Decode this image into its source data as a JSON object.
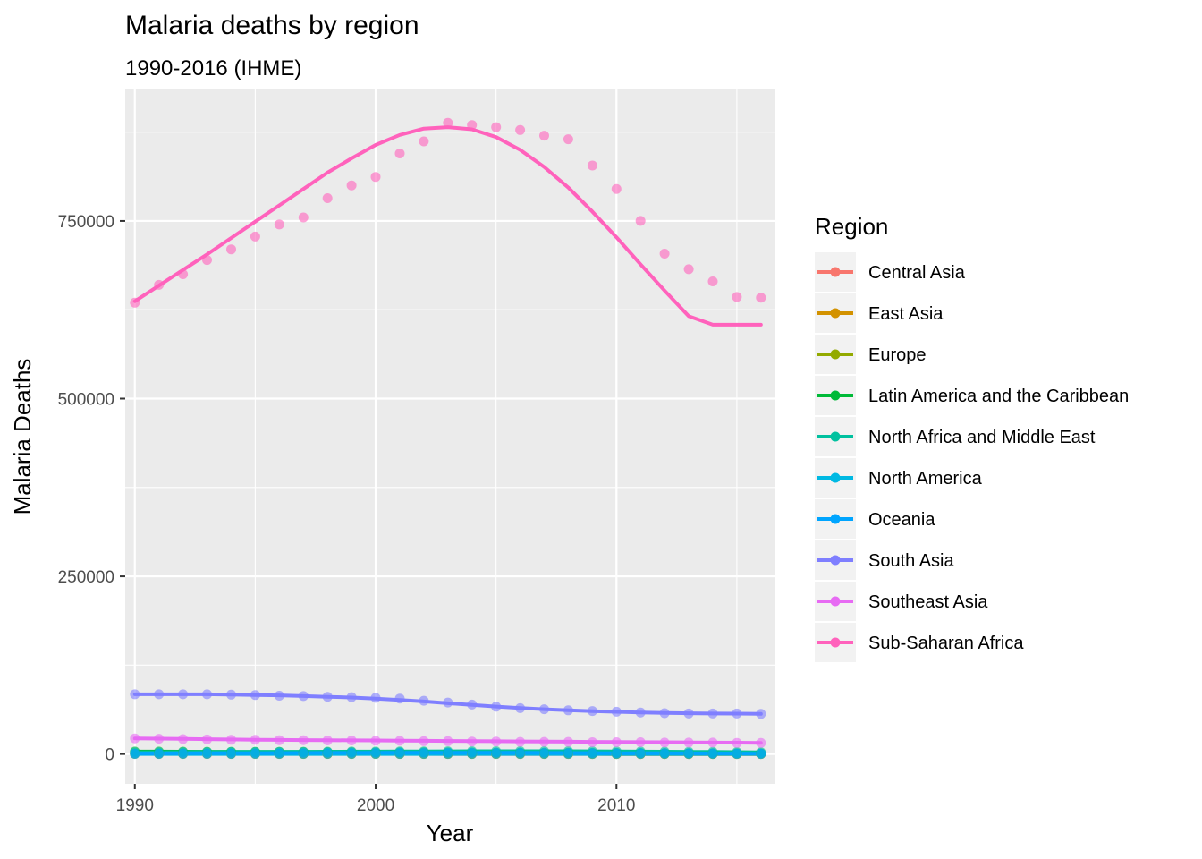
{
  "chart_data": {
    "type": "line",
    "title": "Malaria deaths by region",
    "subtitle": "1990-2016 (IHME)",
    "xlabel": "Year",
    "ylabel": "Malaria Deaths",
    "xlim": [
      1989.6,
      2016.6
    ],
    "ylim": [
      -42000,
      935000
    ],
    "x_ticks": [
      1990,
      2000,
      2010
    ],
    "x_tick_labels": [
      "1990",
      "2000",
      "2010"
    ],
    "y_ticks": [
      0,
      250000,
      500000,
      750000
    ],
    "y_tick_labels": [
      "0",
      "250000",
      "500000",
      "750000"
    ],
    "grid": true,
    "legend": {
      "title": "Region",
      "position": "right"
    },
    "x": [
      1990,
      1991,
      1992,
      1993,
      1994,
      1995,
      1996,
      1997,
      1998,
      1999,
      2000,
      2001,
      2002,
      2003,
      2004,
      2005,
      2006,
      2007,
      2008,
      2009,
      2010,
      2011,
      2012,
      2013,
      2014,
      2015,
      2016
    ],
    "series": [
      {
        "name": "Central Asia",
        "color": "#F8766D",
        "values": [
          200,
          200,
          200,
          200,
          200,
          200,
          200,
          200,
          200,
          150,
          150,
          150,
          150,
          100,
          100,
          100,
          100,
          100,
          100,
          100,
          100,
          100,
          100,
          100,
          100,
          100,
          100
        ],
        "smooth": [
          200,
          200,
          200,
          200,
          200,
          200,
          200,
          200,
          200,
          150,
          150,
          150,
          150,
          100,
          100,
          100,
          100,
          100,
          100,
          100,
          100,
          100,
          100,
          100,
          100,
          100,
          100
        ]
      },
      {
        "name": "East Asia",
        "color": "#D39200",
        "values": [
          500,
          450,
          400,
          400,
          350,
          350,
          300,
          300,
          300,
          250,
          250,
          250,
          200,
          200,
          200,
          150,
          150,
          150,
          150,
          100,
          100,
          100,
          100,
          100,
          80,
          80,
          80
        ],
        "smooth": [
          480,
          450,
          420,
          390,
          360,
          340,
          320,
          300,
          280,
          260,
          240,
          225,
          210,
          195,
          180,
          165,
          150,
          140,
          130,
          120,
          110,
          100,
          95,
          90,
          85,
          80,
          80
        ]
      },
      {
        "name": "Europe",
        "color": "#93AA00",
        "values": [
          300,
          300,
          280,
          280,
          260,
          260,
          250,
          240,
          230,
          220,
          210,
          200,
          190,
          180,
          170,
          160,
          150,
          140,
          130,
          120,
          110,
          100,
          90,
          80,
          70,
          60,
          50
        ],
        "smooth": [
          300,
          295,
          285,
          275,
          265,
          255,
          245,
          235,
          225,
          215,
          205,
          195,
          185,
          175,
          165,
          155,
          145,
          135,
          125,
          115,
          105,
          95,
          85,
          75,
          65,
          58,
          50
        ]
      },
      {
        "name": "Latin America and the Caribbean",
        "color": "#00BA38",
        "values": [
          3500,
          3400,
          3300,
          3200,
          3100,
          3000,
          2900,
          2800,
          2700,
          2600,
          2500,
          2400,
          2300,
          2200,
          2100,
          2000,
          1900,
          1800,
          1700,
          1600,
          1500,
          1400,
          1300,
          1200,
          1100,
          1000,
          950
        ],
        "smooth": [
          3500,
          3400,
          3300,
          3200,
          3100,
          3000,
          2900,
          2800,
          2700,
          2600,
          2500,
          2400,
          2300,
          2200,
          2100,
          2000,
          1900,
          1800,
          1700,
          1600,
          1500,
          1400,
          1300,
          1200,
          1100,
          1000,
          950
        ]
      },
      {
        "name": "North Africa and Middle East",
        "color": "#00C19F",
        "values": [
          2500,
          2600,
          2700,
          2800,
          2900,
          3000,
          3100,
          3200,
          3300,
          3400,
          3500,
          3600,
          3700,
          3800,
          3900,
          4000,
          4000,
          4000,
          3900,
          3800,
          3700,
          3500,
          3300,
          3100,
          2900,
          2700,
          2500
        ],
        "smooth": [
          2500,
          2600,
          2700,
          2800,
          2900,
          3000,
          3100,
          3200,
          3300,
          3400,
          3500,
          3600,
          3700,
          3800,
          3900,
          3950,
          3980,
          3980,
          3900,
          3800,
          3700,
          3500,
          3300,
          3100,
          2900,
          2700,
          2500
        ]
      },
      {
        "name": "North America",
        "color": "#00B9E3",
        "values": [
          10,
          10,
          10,
          10,
          10,
          10,
          10,
          10,
          10,
          10,
          10,
          10,
          10,
          10,
          10,
          10,
          10,
          10,
          10,
          10,
          10,
          10,
          10,
          10,
          10,
          10,
          10
        ],
        "smooth": [
          10,
          10,
          10,
          10,
          10,
          10,
          10,
          10,
          10,
          10,
          10,
          10,
          10,
          10,
          10,
          10,
          10,
          10,
          10,
          10,
          10,
          10,
          10,
          10,
          10,
          10,
          10
        ]
      },
      {
        "name": "Oceania",
        "color": "#00A5FF",
        "values": [
          700,
          800,
          900,
          1000,
          1100,
          1200,
          1300,
          1400,
          1500,
          1600,
          1700,
          1800,
          1800,
          1800,
          1800,
          1700,
          1600,
          1500,
          1400,
          1300,
          1200,
          1100,
          1000,
          900,
          800,
          700,
          600
        ],
        "smooth": [
          700,
          800,
          900,
          1000,
          1100,
          1200,
          1300,
          1400,
          1500,
          1600,
          1700,
          1750,
          1780,
          1790,
          1780,
          1720,
          1630,
          1530,
          1430,
          1320,
          1210,
          1100,
          1000,
          900,
          800,
          700,
          600
        ]
      },
      {
        "name": "South Asia",
        "color": "#7F7FFF",
        "values": [
          84000,
          84000,
          84000,
          84000,
          83500,
          83000,
          82000,
          81500,
          80500,
          80000,
          79000,
          78000,
          75000,
          72500,
          69500,
          66500,
          64500,
          63000,
          61500,
          60500,
          59500,
          58500,
          57500,
          57000,
          57000,
          57000,
          56500
        ],
        "smooth": [
          84000,
          84000,
          84000,
          84000,
          83500,
          83000,
          82500,
          81500,
          80500,
          79500,
          78000,
          76000,
          74000,
          71500,
          69000,
          66800,
          64800,
          63000,
          61500,
          60300,
          59300,
          58500,
          57800,
          57300,
          57000,
          56800,
          56500
        ]
      },
      {
        "name": "Southeast Asia",
        "color": "#E76BF3",
        "values": [
          22000,
          21500,
          21000,
          20500,
          20000,
          20000,
          19500,
          19500,
          19000,
          19000,
          18500,
          18500,
          18000,
          18000,
          17500,
          17500,
          17000,
          17000,
          17000,
          16500,
          16500,
          16500,
          16000,
          16000,
          16000,
          15500,
          15500
        ],
        "smooth": [
          22000,
          21600,
          21200,
          20800,
          20400,
          20000,
          19800,
          19600,
          19400,
          19200,
          19000,
          18800,
          18500,
          18300,
          18100,
          17900,
          17700,
          17500,
          17300,
          17100,
          16900,
          16700,
          16500,
          16300,
          16100,
          15900,
          15700
        ]
      },
      {
        "name": "Sub-Saharan Africa",
        "color": "#FF62BC",
        "values": [
          635000,
          660000,
          675000,
          695000,
          710000,
          728000,
          745000,
          755000,
          782000,
          800000,
          812000,
          845000,
          862000,
          888000,
          885000,
          882000,
          878000,
          870000,
          865000,
          828000,
          795000,
          750000,
          704000,
          682000,
          665000,
          643000,
          642000
        ],
        "smooth": [
          637000,
          659000,
          681000,
          703000,
          726000,
          749000,
          772000,
          795000,
          818000,
          838000,
          857000,
          871000,
          880000,
          882000,
          879000,
          868000,
          850000,
          826000,
          797000,
          763000,
          727000,
          689000,
          652000,
          616000,
          604000,
          604000,
          604000
        ]
      }
    ]
  }
}
